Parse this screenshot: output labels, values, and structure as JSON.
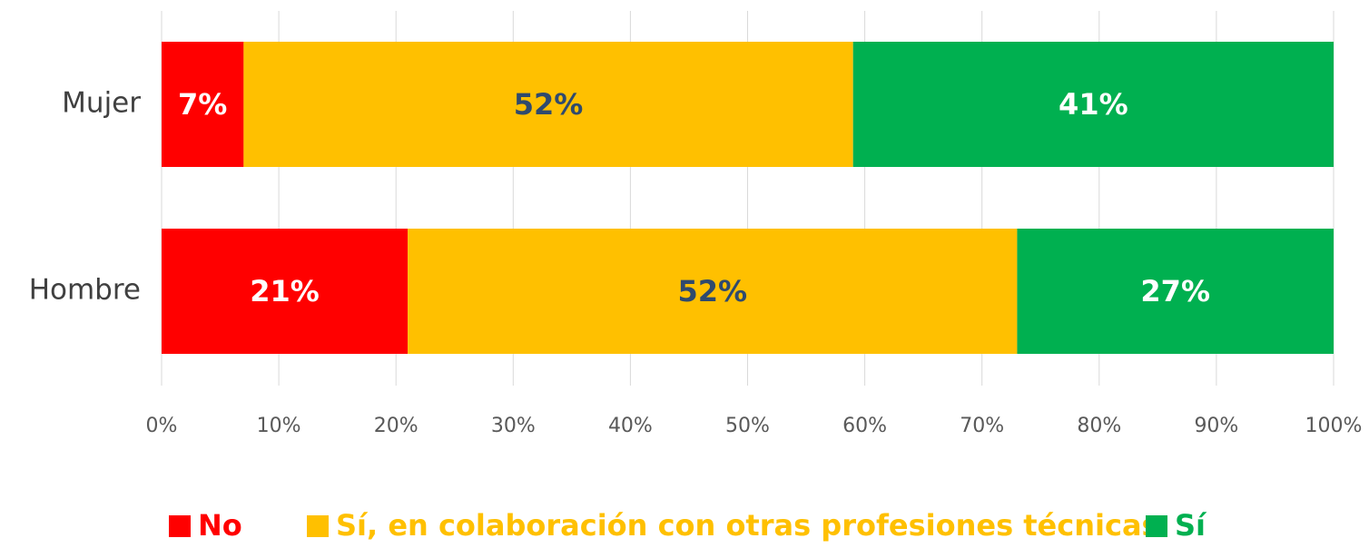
{
  "chart_data": {
    "type": "stacked_barh",
    "categories": [
      "Mujer",
      "Hombre"
    ],
    "series": [
      {
        "name": "No",
        "color": "#ff0000",
        "label_color": "#ffffff",
        "values": [
          7,
          21
        ],
        "value_labels": [
          "7%",
          "21%"
        ]
      },
      {
        "name": "Sí, en colaboración con otras profesiones técnicas",
        "color": "#ffc000",
        "label_color": "#2f4a6e",
        "values": [
          52,
          52
        ],
        "value_labels": [
          "52%",
          "52%"
        ]
      },
      {
        "name": "Sí",
        "color": "#00b050",
        "label_color": "#ffffff",
        "values": [
          41,
          27
        ],
        "value_labels": [
          "41%",
          "27%"
        ]
      }
    ],
    "xlim": [
      0,
      100
    ],
    "xticks": [
      {
        "value": 0,
        "label": "0%"
      },
      {
        "value": 10,
        "label": "10%"
      },
      {
        "value": 20,
        "label": "20%"
      },
      {
        "value": 30,
        "label": "30%"
      },
      {
        "value": 40,
        "label": "40%"
      },
      {
        "value": 50,
        "label": "50%"
      },
      {
        "value": 60,
        "label": "60%"
      },
      {
        "value": 70,
        "label": "70%"
      },
      {
        "value": 80,
        "label": "80%"
      },
      {
        "value": 90,
        "label": "90%"
      },
      {
        "value": 100,
        "label": "100%"
      }
    ],
    "grid": true,
    "legend": "bottom"
  }
}
